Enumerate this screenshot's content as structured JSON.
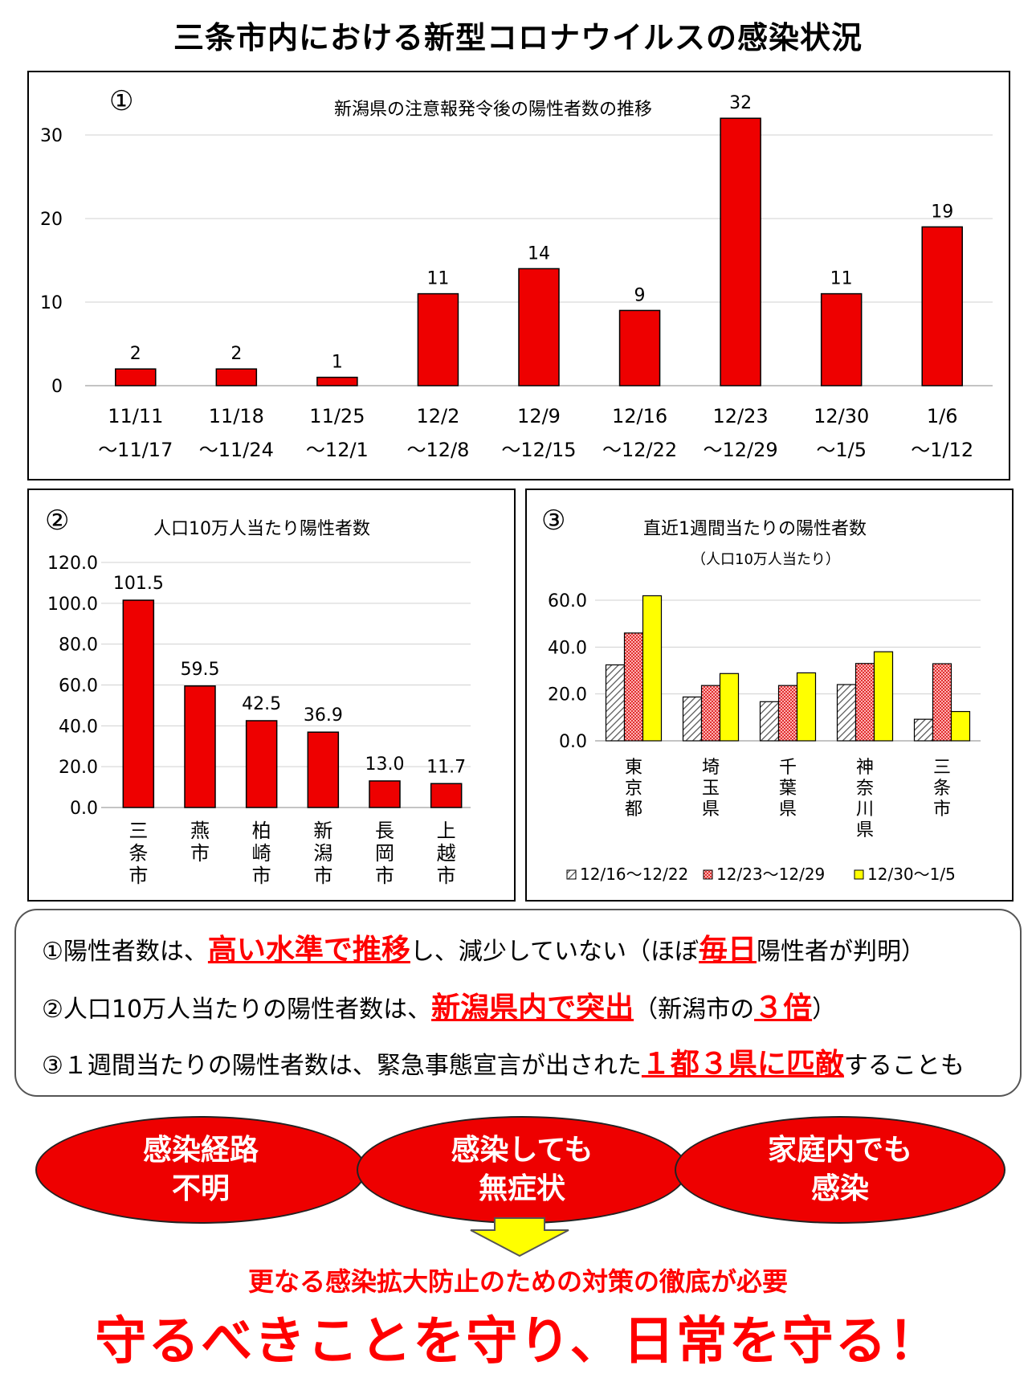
{
  "page_title": "三条市内における新型コロナウイルスの感染状況",
  "panel1": {
    "number": "①",
    "title": "新潟県の注意報発令後の陽性者数の推移"
  },
  "panel2": {
    "number": "②",
    "title": "人口10万人当たり陽性者数"
  },
  "panel3": {
    "number": "③",
    "title": "直近1週間当たりの陽性者数",
    "subtitle": "（人口10万人当たり）"
  },
  "colors": {
    "red": "#ee0000",
    "yellow": "#ffff00",
    "hatch_gray": "#bfbfbf",
    "pink": "#ff9999",
    "highlight": "#ff0000"
  },
  "chart_data": [
    {
      "type": "bar",
      "title": "新潟県の注意報発令後の陽性者数の推移",
      "categories": [
        [
          "11/11",
          "～11/17"
        ],
        [
          "11/18",
          "～11/24"
        ],
        [
          "11/25",
          "～12/1"
        ],
        [
          "12/2",
          "～12/8"
        ],
        [
          "12/9",
          "～12/15"
        ],
        [
          "12/16",
          "～12/22"
        ],
        [
          "12/23",
          "～12/29"
        ],
        [
          "12/30",
          "～1/5"
        ],
        [
          "1/6",
          "～1/12"
        ]
      ],
      "values": [
        2,
        2,
        1,
        11,
        14,
        9,
        32,
        11,
        19
      ],
      "ylim": [
        0,
        35
      ],
      "yticks": [
        0,
        10,
        20,
        30
      ],
      "grid": true,
      "color": "#ee0000"
    },
    {
      "type": "bar",
      "title": "人口10万人当たり陽性者数",
      "categories": [
        "三条市",
        "燕市",
        "柏崎市",
        "新潟市",
        "長岡市",
        "上越市"
      ],
      "values": [
        101.5,
        59.5,
        42.5,
        36.9,
        13.0,
        11.7
      ],
      "value_labels": [
        "101.5",
        "59.5",
        "42.5",
        "36.9",
        "13.0",
        "11.7"
      ],
      "ylim": [
        0,
        120
      ],
      "yticks": [
        "0.0",
        "20.0",
        "40.0",
        "60.0",
        "80.0",
        "100.0",
        "120.0"
      ],
      "grid": true,
      "color": "#ee0000"
    },
    {
      "type": "bar",
      "title": "直近1週間当たりの陽性者数",
      "subtitle": "（人口10万人当たり）",
      "categories": [
        "東京都",
        "埼玉県",
        "千葉県",
        "神奈川県",
        "三条市"
      ],
      "series": [
        {
          "name": "12/16～12/22",
          "values": [
            32.4,
            18.7,
            16.7,
            24.0,
            9.2
          ],
          "style": "hatch"
        },
        {
          "name": "12/23～12/29",
          "values": [
            46.0,
            23.6,
            23.6,
            33.0,
            32.9
          ],
          "style": "pink-check"
        },
        {
          "name": "12/30～1/5",
          "values": [
            61.9,
            28.7,
            29.0,
            38.0,
            12.5
          ],
          "style": "yellow"
        }
      ],
      "ylim": [
        0,
        65
      ],
      "yticks": [
        "0.0",
        "20.0",
        "40.0",
        "60.0"
      ],
      "grid": true,
      "legend_position": "bottom"
    }
  ],
  "summary": {
    "l1": {
      "a": "①陽性者数は、",
      "h1": "高い水準で推移",
      "b": "し、減少していない（ほぼ",
      "h2": "毎日",
      "c": "陽性者が判明）"
    },
    "l2": {
      "a": "②人口10万人当たりの陽性者数は、",
      "h1": "新潟県内で突出",
      "b": "（新潟市の",
      "h2": "３倍",
      "c": "）"
    },
    "l3": {
      "a": "③１週間当たりの陽性者数は、緊急事態宣言が出された",
      "h1": "１都３県に匹敵",
      "b": "することも"
    }
  },
  "ellipses": [
    {
      "line1": "感染経路",
      "line2": "不明"
    },
    {
      "line1": "感染しても",
      "line2": "無症状"
    },
    {
      "line1": "家庭内でも",
      "line2": "感染"
    }
  ],
  "callout": {
    "line1": "更なる感染拡大防止のための対策の徹底が必要",
    "line2": "守るべきことを守り、日常を守る！"
  }
}
